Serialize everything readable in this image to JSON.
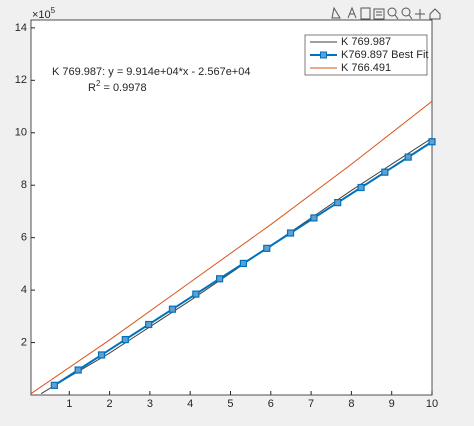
{
  "chart_data": {
    "type": "line",
    "exponent_label": {
      "base": "×10",
      "power": "5"
    },
    "annotation": {
      "equation": "K 769.987:  y = 9.914e+04*x - 2.567e+04",
      "r_label": "R",
      "r_power": "2",
      "r_value": " = 0.9978"
    },
    "xlim": [
      0.05,
      10
    ],
    "ylim": [
      0,
      14.3
    ],
    "xticks": [
      1,
      2,
      3,
      4,
      5,
      6,
      7,
      8,
      9,
      10
    ],
    "yticks": [
      2,
      4,
      6,
      8,
      10,
      12,
      14
    ],
    "legend": "top-right",
    "series": [
      {
        "name": "K 769.987",
        "color": "#404040",
        "width": 1,
        "marker": false,
        "x": [
          0.3,
          1,
          2,
          3,
          4,
          5,
          6,
          7,
          8,
          9,
          10
        ],
        "values": [
          0.05,
          0.7,
          1.6,
          2.6,
          3.6,
          4.65,
          5.7,
          6.75,
          7.8,
          8.8,
          9.8
        ]
      },
      {
        "name": "K769.897 Best Fit",
        "color": "#0072bd",
        "width": 2,
        "marker": true,
        "x": [
          0.63,
          1.22,
          1.8,
          2.39,
          2.97,
          3.56,
          4.14,
          4.73,
          5.32,
          5.9,
          6.49,
          7.07,
          7.66,
          8.24,
          8.83,
          9.41,
          10
        ],
        "values": [
          0.368,
          0.953,
          1.528,
          2.113,
          2.688,
          3.273,
          3.848,
          4.432,
          5.017,
          5.592,
          6.177,
          6.752,
          7.337,
          7.912,
          8.497,
          9.072,
          9.657
        ]
      },
      {
        "name": "K 766.491",
        "color": "#d95319",
        "width": 1,
        "marker": false,
        "x": [
          0,
          2,
          4,
          6,
          8,
          10
        ],
        "values": [
          0,
          2.1,
          4.3,
          6.5,
          8.8,
          11.2
        ]
      }
    ]
  }
}
